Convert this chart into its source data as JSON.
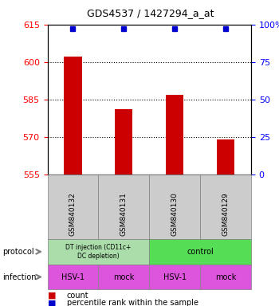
{
  "title": "GDS4537 / 1427294_a_at",
  "samples": [
    "GSM840132",
    "GSM840131",
    "GSM840130",
    "GSM840129"
  ],
  "bar_values": [
    602,
    581,
    587,
    569
  ],
  "percentile_pct": 97,
  "ylim_left": [
    555,
    615
  ],
  "ylim_right": [
    0,
    100
  ],
  "yticks_left": [
    555,
    570,
    585,
    600,
    615
  ],
  "yticks_right": [
    0,
    25,
    50,
    75,
    100
  ],
  "ytick_labels_right": [
    "0",
    "25",
    "50",
    "75",
    "100%"
  ],
  "bar_color": "#cc0000",
  "dot_color": "#0000cc",
  "protocol_group1_label": "DT injection (CD11c+\nDC depletion)",
  "protocol_group2_label": "control",
  "protocol_group1_color": "#aaddaa",
  "protocol_group2_color": "#55dd55",
  "infection_labels": [
    "HSV-1",
    "mock",
    "HSV-1",
    "mock"
  ],
  "infection_color": "#dd55dd",
  "sample_bg_color": "#cccccc",
  "legend_count_color": "#cc0000",
  "legend_dot_color": "#0000cc",
  "title_fontsize": 9,
  "tick_fontsize": 8,
  "label_fontsize": 7,
  "bar_width": 0.35
}
